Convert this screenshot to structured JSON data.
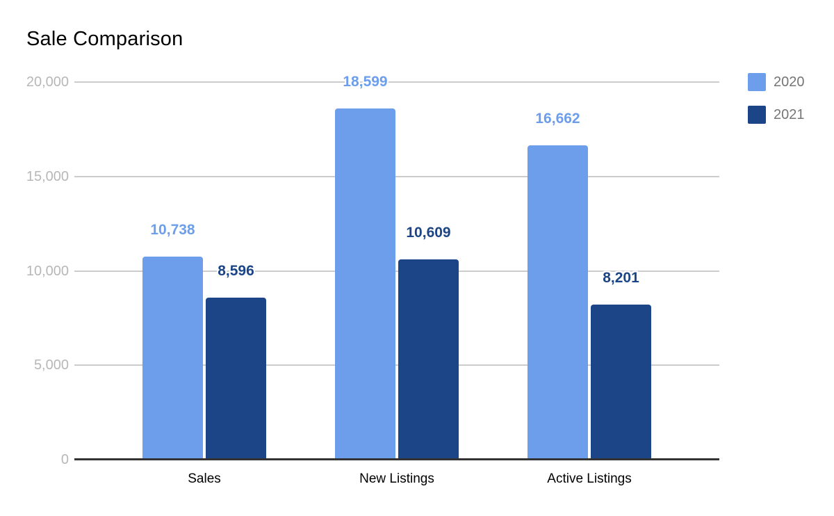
{
  "chart_data": {
    "type": "bar",
    "title": "Sale Comparison",
    "categories": [
      "Sales",
      "New Listings",
      "Active Listings"
    ],
    "series": [
      {
        "name": "2020",
        "color": "#6d9eeb",
        "values": [
          10738,
          18599,
          16662
        ],
        "labels": [
          "10,738",
          "18,599",
          "16,662"
        ]
      },
      {
        "name": "2021",
        "color": "#1c4587",
        "values": [
          8596,
          10609,
          8201
        ],
        "labels": [
          "8,596",
          "10,609",
          "8,201"
        ]
      }
    ],
    "y_axis": {
      "min": 0,
      "max": 20000,
      "ticks": [
        "0",
        "5,000",
        "10,000",
        "15,000",
        "20,000"
      ]
    },
    "legend_position": "right",
    "grid": true,
    "style_colors": {
      "gridline": "#cccccc",
      "axis_line": "#333333",
      "tick_label": "#b7b7b7",
      "legend_text": "#757575",
      "title_text": "#000000"
    }
  }
}
